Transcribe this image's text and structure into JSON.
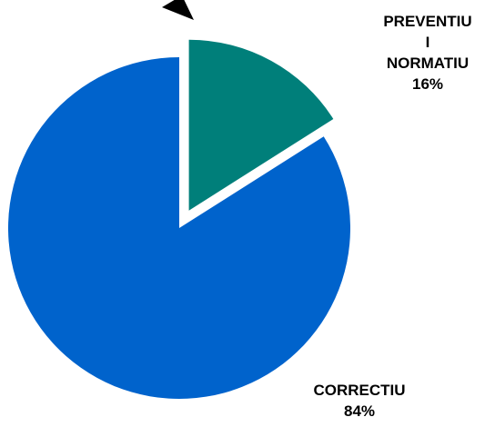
{
  "chart_data": {
    "type": "pie",
    "title": "",
    "slices": [
      {
        "name_lines": [
          "PREVENTIU",
          "I",
          "NORMATIU"
        ],
        "value": 16,
        "value_label": "16%",
        "color": "#007f7a",
        "exploded": true
      },
      {
        "name_lines": [
          "CORRECTIU"
        ],
        "value": 84,
        "value_label": "84%",
        "color": "#0063cc",
        "exploded": false
      }
    ]
  }
}
